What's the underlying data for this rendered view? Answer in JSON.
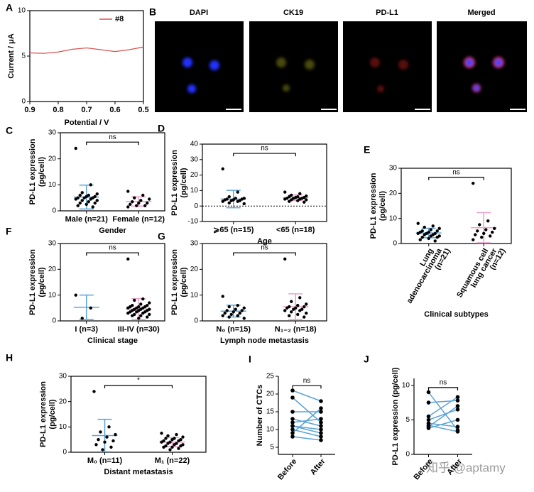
{
  "chart_data": [
    {
      "type": "line",
      "label": "A",
      "xlabel": "Potential / V",
      "ylabel": [
        "Current / μA"
      ],
      "x": [
        0.9,
        0.85,
        0.8,
        0.75,
        0.7,
        0.65,
        0.6,
        0.55,
        0.5
      ],
      "series": [
        {
          "name": "#8",
          "color": "#d9534f",
          "values": [
            5.35,
            5.3,
            5.45,
            5.75,
            5.9,
            5.7,
            5.5,
            5.7,
            6.0
          ]
        }
      ],
      "xlim": [
        0.9,
        0.5
      ],
      "xticks": [
        0.9,
        0.8,
        0.7,
        0.6,
        0.5
      ],
      "ylim": [
        0,
        10
      ],
      "yticks": [
        0,
        5,
        10
      ],
      "legend": "top-right"
    },
    {
      "type": "dot",
      "label": "C",
      "xlabel": "Gender",
      "ylabel": [
        "PD-L1 expression",
        "(pg/cell)"
      ],
      "annotation": "ns",
      "ylim": [
        0,
        30
      ],
      "yticks": [
        0,
        10,
        20,
        30
      ],
      "groups": [
        {
          "name": "Male (n=21)",
          "color": "#5ba3d9",
          "mean": 5.3,
          "sd": 4.6,
          "values": [
            24,
            10,
            7,
            6.5,
            6,
            6,
            5.5,
            5.5,
            5,
            5,
            5,
            4.5,
            4.5,
            4,
            4,
            3.5,
            3,
            3,
            2.5,
            2,
            1.5
          ]
        },
        {
          "name": "Female (n=12)",
          "color": "#e8a0c8",
          "mean": 3.6,
          "sd": 1.8,
          "values": [
            7.5,
            6,
            5,
            4.5,
            4,
            3.5,
            3,
            3,
            2.5,
            2,
            2,
            1.5
          ]
        }
      ]
    },
    {
      "type": "dot",
      "label": "D",
      "xlabel": "Age",
      "ylabel": [
        "PD-L1 expression",
        "(pg/cell)"
      ],
      "annotation": "ns",
      "ylim": [
        -10,
        40
      ],
      "yticks": [
        -10,
        0,
        10,
        20,
        30,
        40
      ],
      "reference_line": 0,
      "groups": [
        {
          "name": "⩾65 (n=15)",
          "color": "#5ba3d9",
          "mean": 4.5,
          "sd": 5.6,
          "values": [
            24,
            9,
            6,
            5,
            5,
            4.5,
            4.5,
            4,
            4,
            3.5,
            3.5,
            3,
            3,
            2,
            1.5
          ]
        },
        {
          "name": "<65 (n=18)",
          "color": "#e8a0c8",
          "mean": 5.4,
          "sd": 1.8,
          "values": [
            9,
            8,
            7,
            6.5,
            6,
            6,
            5.5,
            5.5,
            5,
            5,
            5,
            4.5,
            4.5,
            4,
            4,
            3.5,
            3,
            2.5
          ]
        }
      ]
    },
    {
      "type": "dot",
      "label": "E",
      "xlabel": "Clinical subtypes",
      "ylabel": [
        "PD-L1 expression",
        "(pg/cell)"
      ],
      "annotation": "ns",
      "ylim": [
        0,
        30
      ],
      "yticks": [
        0,
        10,
        20,
        30
      ],
      "rotated_labels": true,
      "groups": [
        {
          "name": [
            "Lung",
            "adenocarcinoma",
            "(n=21)"
          ],
          "color": "#5ba3d9",
          "mean": 4.2,
          "sd": 1.9,
          "values": [
            8,
            7,
            6.5,
            6,
            5.5,
            5,
            5,
            4.5,
            4.5,
            4,
            4,
            4,
            3.5,
            3.5,
            3,
            3,
            2.5,
            2.5,
            2,
            1.5,
            1
          ]
        },
        {
          "name": [
            "Squamous cell",
            "lung cancer",
            "(n=12)"
          ],
          "color": "#e8a0c8",
          "mean": 6.3,
          "sd": 6,
          "values": [
            24,
            9,
            7.5,
            6,
            5.5,
            5,
            4.5,
            4,
            3.5,
            3,
            2.5,
            1.5
          ]
        }
      ]
    },
    {
      "type": "dot",
      "label": "F",
      "xlabel": "Clinical stage",
      "ylabel": [
        "PD-L1 expression",
        "(pg/cell)"
      ],
      "annotation": "ns",
      "ylim": [
        0,
        30
      ],
      "yticks": [
        0,
        10,
        20,
        30
      ],
      "groups": [
        {
          "name": "I (n=3)",
          "color": "#5ba3d9",
          "mean": 5.3,
          "sd": 4.7,
          "values": [
            10,
            5,
            1
          ]
        },
        {
          "name": "III-IV (n=30)",
          "color": "#e8a0c8",
          "mean": 4.6,
          "sd": 4,
          "values": [
            24,
            8.5,
            8,
            7,
            6.5,
            6,
            6,
            5.5,
            5.5,
            5.5,
            5,
            5,
            5,
            4.5,
            4.5,
            4.5,
            4,
            4,
            4,
            3.5,
            3.5,
            3.5,
            3,
            3,
            2.5,
            2.5,
            2,
            2,
            1.5,
            1
          ]
        }
      ]
    },
    {
      "type": "dot",
      "label": "G",
      "xlabel": "Lymph node metastasis",
      "ylabel": [
        "PD-L1 expression",
        "(pg/cell)"
      ],
      "annotation": "ns",
      "ylim": [
        0,
        30
      ],
      "yticks": [
        0,
        10,
        20,
        30
      ],
      "groups": [
        {
          "name": "N₀ (n=15)",
          "color": "#5ba3d9",
          "mean": 3.8,
          "sd": 2.3,
          "values": [
            9.5,
            6,
            5.5,
            5,
            4.5,
            4,
            4,
            3.5,
            3,
            3,
            2.5,
            2,
            2,
            1.5,
            1
          ]
        },
        {
          "name": "N₁₋₂ (n=18)",
          "color": "#e8a0c8",
          "mean": 5.5,
          "sd": 5,
          "values": [
            24,
            9,
            7.5,
            6.5,
            6,
            5.5,
            5.5,
            5,
            5,
            4.5,
            4.5,
            4,
            4,
            3.5,
            3,
            2.5,
            2,
            1.5
          ]
        }
      ]
    },
    {
      "type": "dot",
      "label": "H",
      "xlabel": "Distant metastasis",
      "ylabel": [
        "PD-L1 expression",
        "(pg/cell)"
      ],
      "annotation": "*",
      "ylim": [
        0,
        30
      ],
      "yticks": [
        0,
        10,
        20,
        30
      ],
      "groups": [
        {
          "name": "M₀ (n=11)",
          "color": "#5ba3d9",
          "mean": 6.6,
          "sd": 6.4,
          "values": [
            24,
            10,
            8,
            7,
            6,
            5,
            4.5,
            4,
            3,
            2,
            1
          ]
        },
        {
          "name": "M₁ (n=22)",
          "color": "#e8a0c8",
          "mean": 4,
          "sd": 1.8,
          "values": [
            7.5,
            7,
            6.5,
            6,
            5.5,
            5.5,
            5,
            5,
            4.5,
            4.5,
            4,
            4,
            3.5,
            3.5,
            3,
            3,
            2.5,
            2.5,
            2,
            2,
            1.5,
            1
          ]
        }
      ]
    },
    {
      "type": "paired",
      "label": "I",
      "ylabel": [
        "Number of CTCs"
      ],
      "annotation": "ns",
      "line_color": "#5ba3d9",
      "ylim": [
        3,
        25
      ],
      "yticks": [
        5,
        10,
        15,
        20,
        25
      ],
      "series": [
        {
          "name": "Before",
          "values": [
            21,
            19,
            15,
            13,
            12,
            11,
            11,
            10,
            9,
            8
          ]
        },
        {
          "name": "After",
          "values": [
            18,
            12,
            15,
            11,
            13,
            10,
            9,
            8,
            16,
            7
          ]
        }
      ]
    },
    {
      "type": "paired",
      "label": "J",
      "ylabel": [
        "PD-L1 expression (pg/cell)"
      ],
      "annotation": "ns",
      "line_color": "#5ba3d9",
      "ylim": [
        0,
        11
      ],
      "yticks": [
        0,
        5,
        10
      ],
      "series": [
        {
          "name": "Before",
          "values": [
            9,
            7.5,
            5.5,
            5,
            4.5,
            4.2,
            4,
            3.8
          ]
        },
        {
          "name": "After",
          "values": [
            3.5,
            7.8,
            8.3,
            6.5,
            4,
            3.3,
            7,
            5
          ]
        }
      ]
    }
  ],
  "image_panel": {
    "label": "B",
    "titles": [
      "DAPI",
      "CK19",
      "PD-L1",
      "Merged"
    ]
  },
  "watermark": "知乎 @aptamy"
}
